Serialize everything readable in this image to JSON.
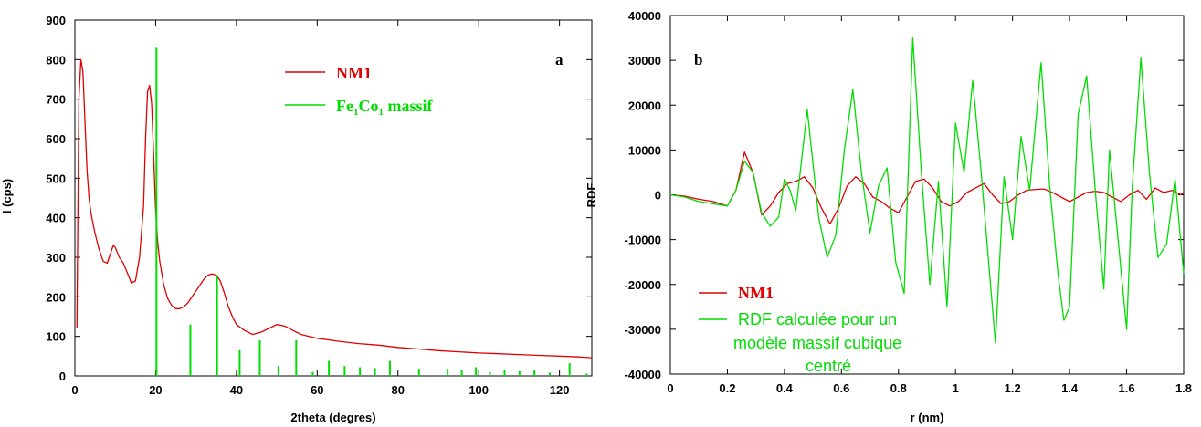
{
  "chart_data": [
    {
      "type": "line",
      "panel_label": "a",
      "xlabel": "2theta (degres)",
      "ylabel": "I (cps)",
      "xlim": [
        0,
        128
      ],
      "ylim": [
        0,
        900
      ],
      "xticks": [
        "0",
        "20",
        "40",
        "60",
        "80",
        "100",
        "120"
      ],
      "yticks": [
        "0",
        "100",
        "200",
        "300",
        "400",
        "500",
        "600",
        "700",
        "800",
        "900"
      ],
      "grid": false,
      "legend_position": "top-right",
      "series": [
        {
          "name": "NM1",
          "color": "#e00000",
          "x": [
            0.5,
            1,
            1.5,
            2,
            2.5,
            3,
            3.5,
            4,
            5,
            6,
            7,
            8,
            9,
            9.5,
            10,
            11,
            12,
            13,
            14,
            15,
            16,
            17,
            17.5,
            18,
            18.5,
            19,
            19.5,
            20,
            20.5,
            21,
            22,
            23,
            24,
            25,
            26,
            27,
            28,
            29,
            30,
            31,
            32,
            33,
            34,
            35,
            36,
            37,
            38,
            39,
            40,
            42,
            44,
            46,
            48,
            50,
            52,
            54,
            56,
            58,
            60,
            65,
            70,
            75,
            80,
            85,
            90,
            95,
            100,
            105,
            110,
            115,
            120,
            125,
            128
          ],
          "y": [
            120,
            700,
            800,
            770,
            640,
            520,
            450,
            410,
            360,
            320,
            290,
            285,
            315,
            330,
            325,
            300,
            285,
            260,
            235,
            240,
            300,
            430,
            600,
            720,
            735,
            690,
            560,
            420,
            340,
            290,
            230,
            195,
            178,
            170,
            170,
            175,
            185,
            200,
            215,
            230,
            245,
            255,
            258,
            255,
            240,
            210,
            175,
            150,
            130,
            115,
            105,
            110,
            120,
            130,
            126,
            115,
            105,
            100,
            95,
            88,
            82,
            78,
            72,
            68,
            64,
            61,
            58,
            56,
            54,
            52,
            50,
            48,
            46
          ]
        },
        {
          "name": "Fe1Co1 massif",
          "color": "#00dd00",
          "sticks_x": [
            20.2,
            28.6,
            35.2,
            40.8,
            45.8,
            50.4,
            54.8,
            58.9,
            62.9,
            66.8,
            70.6,
            74.3,
            78.0,
            85.2,
            92.3,
            95.8,
            99.3,
            102.8,
            106.4,
            110.1,
            113.8,
            117.6,
            122.5,
            126.7
          ],
          "sticks_y": [
            830,
            130,
            255,
            65,
            90,
            25,
            90,
            10,
            38,
            25,
            22,
            20,
            38,
            18,
            18,
            15,
            22,
            10,
            15,
            12,
            14,
            8,
            32,
            6
          ]
        }
      ],
      "legend": {
        "nm1": "NM1",
        "fe_main": "Fe",
        "fe_sub1": "1",
        "co": "Co",
        "co_sub1": "1",
        "massif": " massif"
      }
    },
    {
      "type": "line",
      "panel_label": "b",
      "xlabel": "r (nm)",
      "ylabel": "RDF",
      "xlim": [
        0,
        1.8
      ],
      "ylim": [
        -40000,
        40000
      ],
      "xticks": [
        "0",
        "0.2",
        "0.4",
        "0.6",
        "0.8",
        "1",
        "1.2",
        "1.4",
        "1.6",
        "1.8"
      ],
      "yticks": [
        "-40000",
        "-30000",
        "-20000",
        "-10000",
        "0",
        "10000",
        "20000",
        "30000",
        "40000"
      ],
      "grid": false,
      "legend_position": "bottom-left",
      "series": [
        {
          "name": "NM1",
          "color": "#e00000",
          "x": [
            0,
            0.05,
            0.1,
            0.15,
            0.2,
            0.23,
            0.26,
            0.29,
            0.32,
            0.35,
            0.38,
            0.41,
            0.44,
            0.47,
            0.5,
            0.53,
            0.56,
            0.59,
            0.62,
            0.65,
            0.68,
            0.71,
            0.74,
            0.77,
            0.8,
            0.83,
            0.86,
            0.89,
            0.92,
            0.95,
            0.98,
            1.01,
            1.04,
            1.07,
            1.1,
            1.13,
            1.16,
            1.19,
            1.22,
            1.25,
            1.28,
            1.31,
            1.34,
            1.37,
            1.4,
            1.43,
            1.46,
            1.49,
            1.52,
            1.55,
            1.58,
            1.61,
            1.64,
            1.67,
            1.7,
            1.73,
            1.76,
            1.79,
            1.8
          ],
          "y": [
            0,
            -300,
            -1000,
            -1500,
            -2500,
            1000,
            9500,
            5000,
            -4500,
            -2500,
            500,
            2500,
            3000,
            4000,
            1500,
            -3000,
            -6500,
            -3000,
            2000,
            4000,
            2500,
            -500,
            -1500,
            -3000,
            -4000,
            -500,
            3000,
            3500,
            1500,
            -1500,
            -2500,
            -1500,
            500,
            1500,
            2500,
            0,
            -2000,
            -1500,
            0,
            1000,
            1200,
            1300,
            500,
            -500,
            -1500,
            -500,
            500,
            800,
            500,
            -500,
            -1500,
            0,
            1000,
            -1000,
            1500,
            500,
            1000,
            0,
            500
          ]
        },
        {
          "name": "RDF calculée pour un modèle massif cubique centré",
          "color": "#00dd00",
          "x": [
            0,
            0.05,
            0.1,
            0.15,
            0.2,
            0.23,
            0.26,
            0.29,
            0.32,
            0.35,
            0.38,
            0.4,
            0.42,
            0.44,
            0.48,
            0.52,
            0.55,
            0.58,
            0.61,
            0.64,
            0.67,
            0.7,
            0.73,
            0.76,
            0.79,
            0.82,
            0.85,
            0.88,
            0.91,
            0.94,
            0.97,
            1.0,
            1.03,
            1.06,
            1.09,
            1.12,
            1.14,
            1.17,
            1.2,
            1.23,
            1.26,
            1.3,
            1.33,
            1.36,
            1.38,
            1.4,
            1.43,
            1.46,
            1.49,
            1.52,
            1.54,
            1.57,
            1.6,
            1.62,
            1.65,
            1.68,
            1.71,
            1.74,
            1.77,
            1.8
          ],
          "y": [
            0,
            -500,
            -1500,
            -2000,
            -2500,
            1000,
            7500,
            5000,
            -4000,
            -7000,
            -5000,
            3500,
            1000,
            -3500,
            19000,
            -5000,
            -14000,
            -9000,
            10000,
            23500,
            5000,
            -8500,
            2000,
            6000,
            -15000,
            -22000,
            35000,
            5000,
            -20000,
            3000,
            -25000,
            16000,
            5000,
            25500,
            5000,
            -18000,
            -33000,
            4000,
            -10000,
            13000,
            1000,
            29500,
            2000,
            -18000,
            -28000,
            -25000,
            18000,
            26500,
            1000,
            -21000,
            10000,
            -10000,
            -30000,
            2000,
            30500,
            5000,
            -14000,
            -11000,
            3500,
            -17500
          ]
        }
      ],
      "legend": {
        "nm1": "NM1",
        "calc_line1": "RDF calculée pour un",
        "calc_line2": "modèle massif cubique",
        "calc_line3": "centré"
      }
    }
  ]
}
